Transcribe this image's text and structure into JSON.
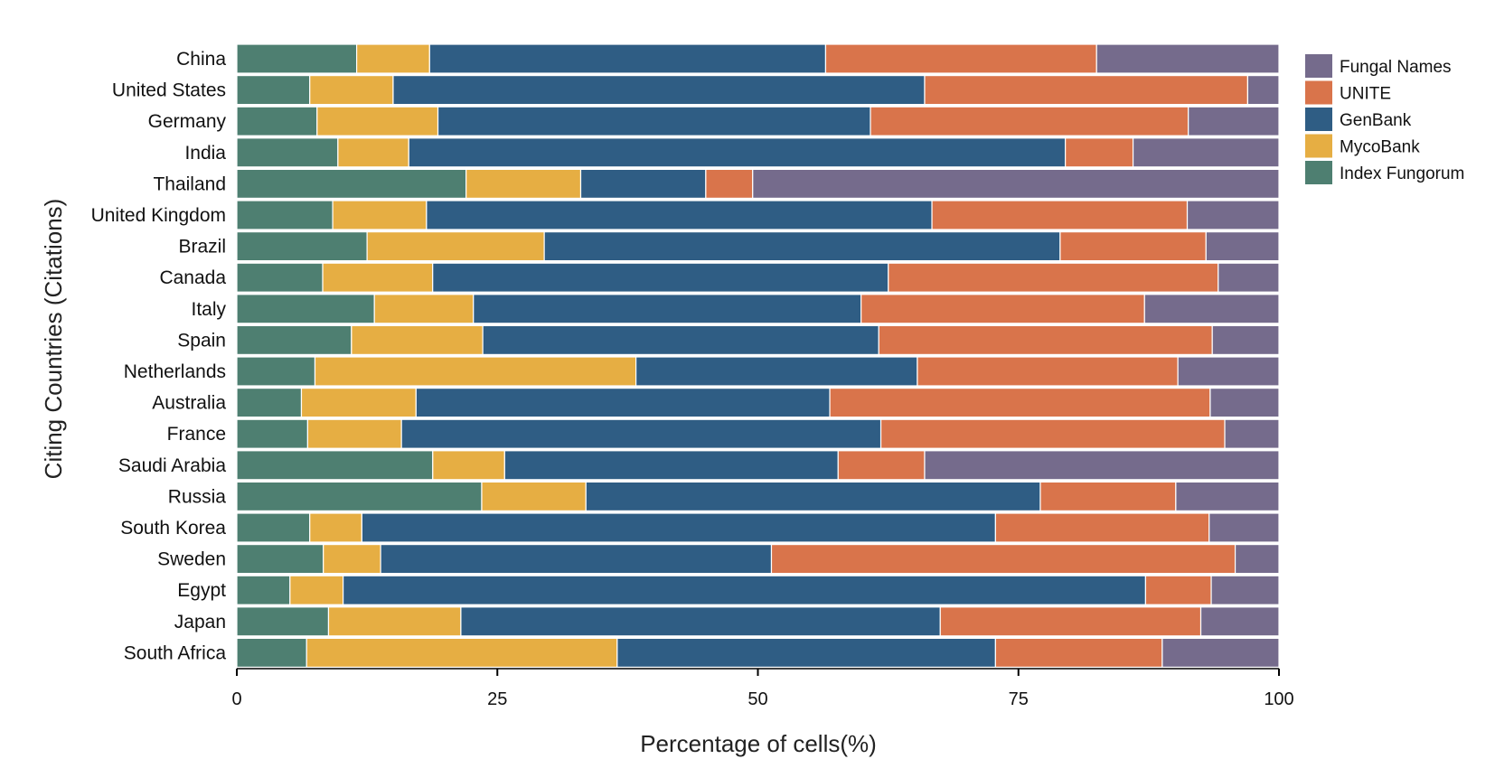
{
  "chart_data": {
    "type": "bar",
    "orientation": "horizontal",
    "stacked": true,
    "xlabel": "Percentage of cells(%)",
    "ylabel": "Citing Countries (Citations)",
    "xlim": [
      0,
      100
    ],
    "xticks": [
      0,
      25,
      50,
      75,
      100
    ],
    "grid": false,
    "legend_position": "right",
    "categories": [
      "China",
      "United States",
      "Germany",
      "India",
      "Thailand",
      "United Kingdom",
      "Brazil",
      "Canada",
      "Italy",
      "Spain",
      "Netherlands",
      "Australia",
      "France",
      "Saudi Arabia",
      "Russia",
      "South Korea",
      "Sweden",
      "Egypt",
      "Japan",
      "South Africa"
    ],
    "series": [
      {
        "name": "Index Fungorum",
        "color": "#4e7f71",
        "values": [
          11.5,
          7,
          7.7,
          9.7,
          22,
          9.2,
          12.5,
          8.2,
          13.2,
          11,
          7.5,
          6.2,
          6.8,
          18.8,
          23.5,
          7,
          8.3,
          5.1,
          8.8,
          6.7
        ]
      },
      {
        "name": "MycoBank",
        "color": "#e6ae43",
        "values": [
          7,
          8,
          11.6,
          6.8,
          11,
          9,
          17,
          10.5,
          9.5,
          12.6,
          30.8,
          11,
          9,
          6.9,
          10,
          5,
          5.5,
          5.1,
          12.7,
          29.8
        ]
      },
      {
        "name": "GenBank",
        "color": "#2f5d84",
        "values": [
          38,
          51,
          41.5,
          63,
          12,
          48.5,
          49.5,
          43.5,
          37.2,
          38,
          27,
          39.7,
          46,
          32,
          43.6,
          60.8,
          37.5,
          77,
          46,
          36.3
        ]
      },
      {
        "name": "UNITE",
        "color": "#d9744b",
        "values": [
          26,
          31,
          30.5,
          6.5,
          4.5,
          24.5,
          14,
          31.5,
          27.2,
          32,
          25,
          36.5,
          33,
          8.3,
          13,
          20.5,
          44.5,
          6.3,
          25,
          16
        ]
      },
      {
        "name": "Fungal Names",
        "color": "#756b8c",
        "values": [
          17.5,
          3,
          8.7,
          14,
          50.5,
          8.8,
          7,
          5.8,
          12.9,
          6.4,
          9.7,
          6.6,
          5.2,
          34,
          9.9,
          6.7,
          4.2,
          6.5,
          7.5,
          11.2
        ]
      }
    ],
    "legend_order": [
      "Fungal Names",
      "UNITE",
      "GenBank",
      "MycoBank",
      "Index Fungorum"
    ]
  }
}
